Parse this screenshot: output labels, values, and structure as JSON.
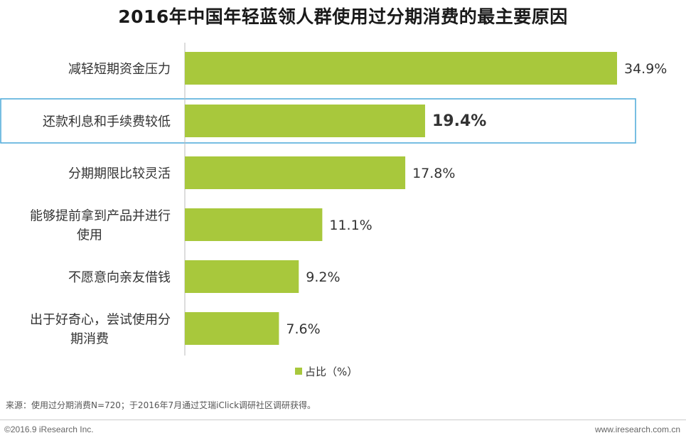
{
  "colors": {
    "bar": "#a8c83c",
    "highlight_border": "#4aa9d9",
    "axis": "#bbbbbb"
  },
  "chart_data": {
    "type": "bar",
    "orientation": "horizontal",
    "title": "2016年中国年轻蓝领人群使用过分期消费的最主要原因",
    "categories": [
      [
        "减轻短期资金压力"
      ],
      [
        "还款利息和手续费较低"
      ],
      [
        "分期期限比较灵活"
      ],
      [
        "能够提前拿到产品并进行",
        "使用"
      ],
      [
        "不愿意向亲友借钱"
      ],
      [
        "出于好奇心，尝试使用分",
        "期消费"
      ]
    ],
    "values": [
      34.9,
      19.4,
      17.8,
      11.1,
      9.2,
      7.6
    ],
    "value_labels": [
      "34.9%",
      "19.4%",
      "17.8%",
      "11.1%",
      "9.2%",
      "7.6%"
    ],
    "highlight_index": 1,
    "legend": {
      "label": "占比（%）",
      "position": "bottom"
    },
    "xlim": [
      0,
      34.9
    ],
    "grid": false
  },
  "footer": {
    "source": "来源：使用过分期消费N=720；于2016年7月通过艾瑞iClick调研社区调研获得。",
    "copyright": "©2016.9 iResearch Inc.",
    "website": "www.iresearch.com.cn"
  }
}
